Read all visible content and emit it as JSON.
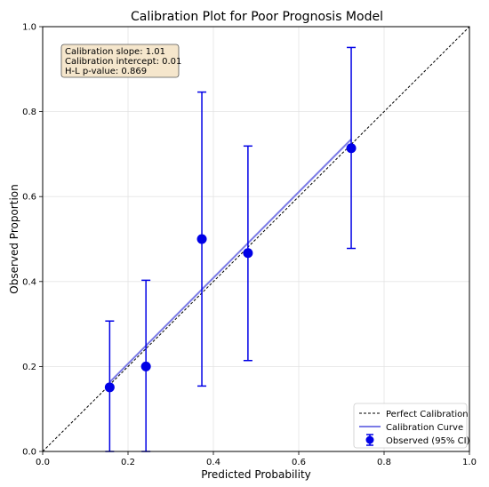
{
  "chart_data": {
    "type": "scatter",
    "title": "Calibration Plot for Poor Prognosis Model",
    "xlabel": "Predicted Probability",
    "ylabel": "Observed Proportion",
    "xlim": [
      0.0,
      1.0
    ],
    "ylim": [
      0.0,
      1.0
    ],
    "x_ticks": [
      "0.0",
      "0.2",
      "0.4",
      "0.6",
      "0.8",
      "1.0"
    ],
    "y_ticks": [
      "0.0",
      "0.2",
      "0.4",
      "0.6",
      "0.8",
      "1.0"
    ],
    "grid": true,
    "legend_position": "lower-right",
    "stats_box": {
      "lines": [
        "Calibration slope: 1.01",
        "Calibration intercept: 0.01",
        "H-L p-value: 0.869"
      ],
      "position": "upper-left"
    },
    "series": [
      {
        "name": "Perfect Calibration",
        "kind": "line",
        "style": "dashed",
        "color": "#000000",
        "x": [
          0.0,
          1.0
        ],
        "y": [
          0.0,
          1.0
        ]
      },
      {
        "name": "Calibration Curve",
        "kind": "line",
        "color": "#7b7be6",
        "x": [
          0.157,
          0.723
        ],
        "y": [
          0.163,
          0.735
        ]
      },
      {
        "name": "Observed (95% CI)",
        "kind": "errorbar",
        "color": "#0000e6",
        "points": [
          {
            "x": 0.157,
            "y": 0.151,
            "lo": 0.0,
            "hi": 0.307
          },
          {
            "x": 0.242,
            "y": 0.2,
            "lo": 0.0,
            "hi": 0.403
          },
          {
            "x": 0.373,
            "y": 0.5,
            "lo": 0.154,
            "hi": 0.846
          },
          {
            "x": 0.481,
            "y": 0.467,
            "lo": 0.214,
            "hi": 0.719
          },
          {
            "x": 0.723,
            "y": 0.714,
            "lo": 0.478,
            "hi": 0.951
          }
        ]
      }
    ]
  }
}
